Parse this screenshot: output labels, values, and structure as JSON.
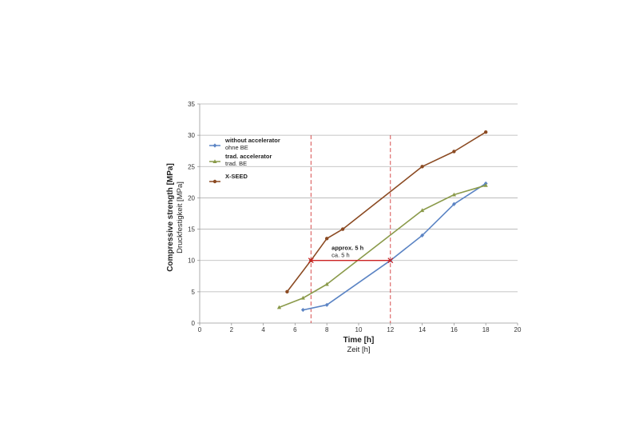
{
  "chart_data": {
    "type": "line",
    "xlabel": "Time [h]",
    "xlabel_sub": "Zeit [h]",
    "ylabel": "Compressive strength [MPa]",
    "ylabel_sub": "Druckfestigkeit [MPa]",
    "xlim": [
      0,
      20
    ],
    "ylim": [
      0,
      35
    ],
    "xticks": [
      0,
      2,
      4,
      6,
      8,
      10,
      12,
      14,
      16,
      18,
      20
    ],
    "yticks": [
      0,
      5,
      10,
      15,
      20,
      25,
      30,
      35
    ],
    "grid": "horizontal",
    "legend_position": "top-left",
    "series": [
      {
        "name": "without accelerator",
        "name_sub": "ohne BE",
        "color": "#5b84c4",
        "marker": "diamond",
        "x": [
          6.5,
          8,
          12,
          14,
          16,
          18
        ],
        "y": [
          2.1,
          2.9,
          10,
          14,
          19,
          22.3
        ]
      },
      {
        "name": "trad. accelerator",
        "name_sub": "trad. BE",
        "color": "#8a9a4a",
        "marker": "triangle",
        "x": [
          5,
          6.5,
          8,
          14,
          16,
          18
        ],
        "y": [
          2.5,
          4,
          6.2,
          18,
          20.5,
          22
        ]
      },
      {
        "name": "X-SEED",
        "name_sub": "",
        "color": "#8b4a22",
        "marker": "circle",
        "x": [
          5.5,
          7,
          8,
          9,
          14,
          16,
          18
        ],
        "y": [
          5,
          10,
          13.5,
          15,
          25,
          27.4,
          30.5
        ]
      }
    ],
    "annotations": {
      "reference_lines_x": [
        7,
        12
      ],
      "reference_color": "#cc2222",
      "bracket_y": 10,
      "label": "approx. 5 h",
      "label_sub": "ca. 5 h",
      "label_anchor": [
        8.3,
        11.3
      ]
    }
  }
}
